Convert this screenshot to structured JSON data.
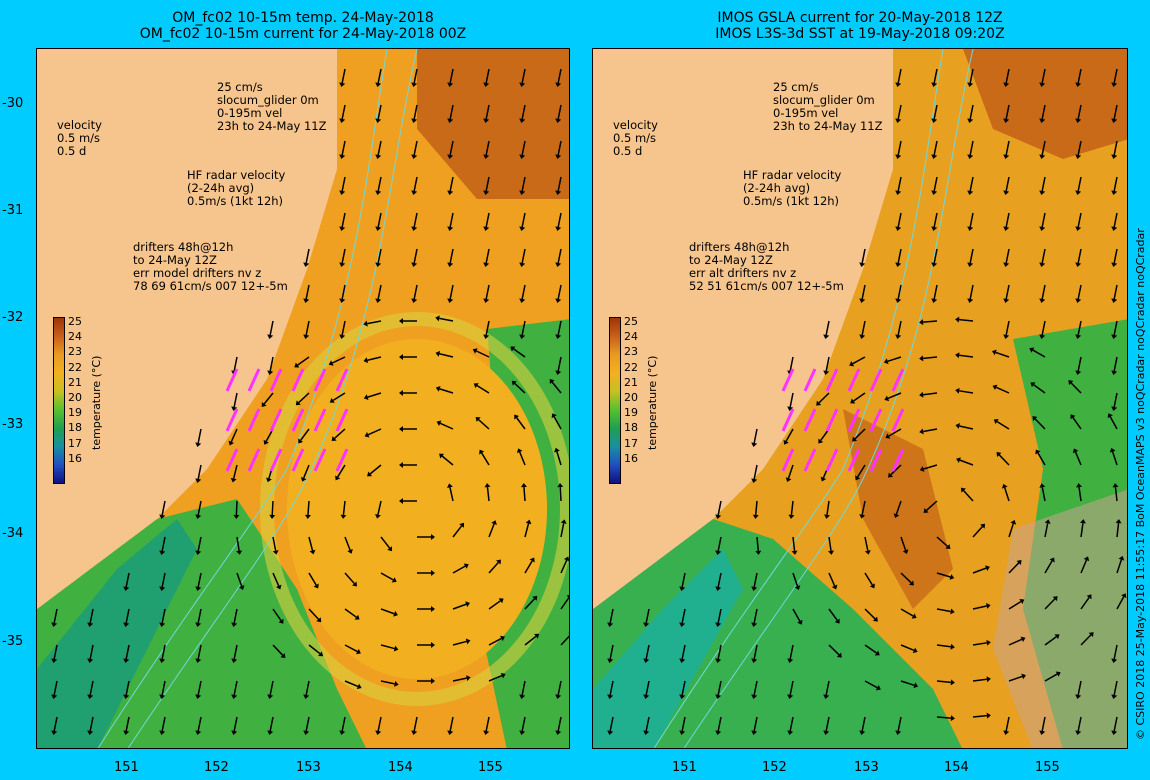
{
  "left_panel": {
    "title_line1": "OM_fc02 10-15m temp. 24-May-2018",
    "title_line2": "OM_fc02 10-15m current for 24-May-2018 00Z",
    "legend_glider": "25 cm/s\nslocum_glider 0m\n0-195m vel\n23h to 24-May 11Z",
    "legend_velocity": "velocity\n0.5 m/s\n0.5 d",
    "legend_hf": "HF radar velocity\n(2-24h avg)\n0.5m/s (1kt 12h)",
    "legend_drifters": "drifters 48h@12h\nto 24-May 12Z\nerr model drifters nv z\n78 69 61cm/s 007 12+-5m"
  },
  "right_panel": {
    "title_line1": "IMOS GSLA current for 20-May-2018 12Z",
    "title_line2": "IMOS L3S-3d SST at 19-May-2018 09:20Z",
    "legend_glider": "25 cm/s\nslocum_glider 0m\n0-195m vel\n23h to 24-May 11Z",
    "legend_velocity": "velocity\n0.5 m/s\n0.5 d",
    "legend_hf": "HF radar velocity\n(2-24h avg)\n0.5m/s (1kt 12h)",
    "legend_drifters": "drifters 48h@12h\nto 24-May 12Z\nerr alt drifters nv z\n52 51 61cm/s 007 12+-5m"
  },
  "colorbar": {
    "label": "temperature (°C)",
    "ticks": [
      "25",
      "24",
      "23",
      "22",
      "21",
      "20",
      "19",
      "18",
      "17",
      "16"
    ],
    "colors": [
      "#a0340a",
      "#c8601a",
      "#e99a22",
      "#f2b020",
      "#c8c020",
      "#58c030",
      "#20a050",
      "#1890a0",
      "#2050c0",
      "#101080"
    ]
  },
  "axes": {
    "lat_ticks": [
      "-30",
      "-31",
      "-32",
      "-33",
      "-34",
      "-35"
    ],
    "lon_ticks": [
      "151",
      "152",
      "153",
      "154",
      "155"
    ]
  },
  "side_text": "© CSIRO 2018   25-May-2018 11:55:17 BoM OceanMAPS v3 noQCradar noQCradar noQCradar",
  "colors": {
    "land": "#f6c48d",
    "frame": "#00ccff",
    "drifter": "#ff33ff",
    "glider": "#0000ff"
  }
}
